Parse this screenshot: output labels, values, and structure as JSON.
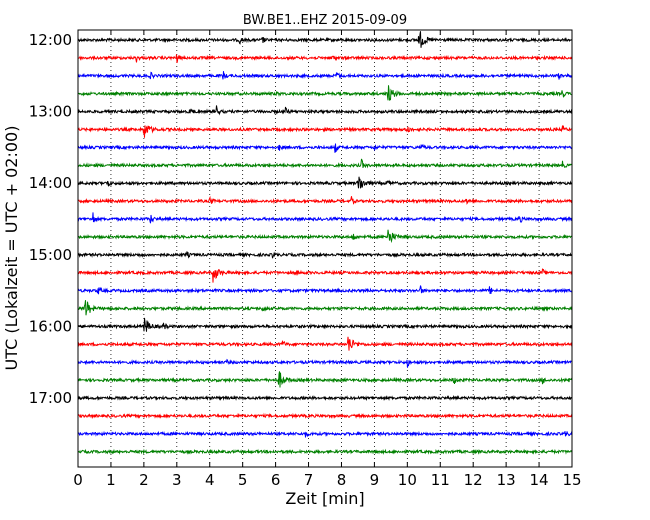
{
  "chart_data": {
    "type": "line",
    "title": "BW.BE1..EHZ 2015-09-09",
    "xlabel": "Zeit  [min]",
    "ylabel": "UTC (Lokalzeit = UTC + 02:00)",
    "xlim": [
      0,
      15
    ],
    "x_ticks": [
      "0",
      "1",
      "2",
      "3",
      "4",
      "5",
      "6",
      "7",
      "8",
      "9",
      "10",
      "11",
      "12",
      "13",
      "14",
      "15"
    ],
    "y_ticks": [
      "12:00",
      "13:00",
      "14:00",
      "15:00",
      "16:00",
      "17:00"
    ],
    "grid": "vertical dotted at each minute",
    "trace_colors": [
      "#000000",
      "#ff0000",
      "#0000ff",
      "#008000"
    ],
    "traces": [
      {
        "start": "12:00",
        "events": [
          {
            "t": 4.9,
            "a": 0.3
          },
          {
            "t": 5.6,
            "a": 0.35
          },
          {
            "t": 10.35,
            "a": 1.0
          }
        ]
      },
      {
        "start": "12:15",
        "events": [
          {
            "t": 1.75,
            "a": 0.5
          },
          {
            "t": 3.0,
            "a": 0.45
          },
          {
            "t": 7.7,
            "a": 0.3
          }
        ]
      },
      {
        "start": "12:30",
        "events": [
          {
            "t": 2.2,
            "a": 0.3
          },
          {
            "t": 4.4,
            "a": 0.45
          },
          {
            "t": 7.85,
            "a": 0.45
          },
          {
            "t": 14.6,
            "a": 0.25
          }
        ]
      },
      {
        "start": "12:45",
        "events": [
          {
            "t": 9.4,
            "a": 0.9
          },
          {
            "t": 14.7,
            "a": 0.45
          },
          {
            "t": 6.0,
            "a": 0.2
          }
        ]
      },
      {
        "start": "13:00",
        "events": [
          {
            "t": 3.4,
            "a": 0.45
          },
          {
            "t": 4.2,
            "a": 0.55
          },
          {
            "t": 6.3,
            "a": 0.3
          }
        ]
      },
      {
        "start": "13:15",
        "events": [
          {
            "t": 2.0,
            "a": 0.8
          },
          {
            "t": 10.0,
            "a": 0.5
          },
          {
            "t": 14.7,
            "a": 0.3
          }
        ]
      },
      {
        "start": "13:30",
        "events": [
          {
            "t": 6.1,
            "a": 0.3
          },
          {
            "t": 7.8,
            "a": 0.55
          },
          {
            "t": 10.4,
            "a": 0.4
          },
          {
            "t": 9.0,
            "a": 0.25
          }
        ]
      },
      {
        "start": "13:45",
        "events": [
          {
            "t": 8.6,
            "a": 0.55
          },
          {
            "t": 14.7,
            "a": 0.35
          }
        ]
      },
      {
        "start": "14:00",
        "events": [
          {
            "t": 0.9,
            "a": 0.45
          },
          {
            "t": 8.5,
            "a": 1.0
          },
          {
            "t": 9.4,
            "a": 0.35
          }
        ]
      },
      {
        "start": "14:15",
        "events": [
          {
            "t": 4.0,
            "a": 0.4
          },
          {
            "t": 8.3,
            "a": 0.35
          },
          {
            "t": 11.8,
            "a": 0.25
          }
        ]
      },
      {
        "start": "14:30",
        "events": [
          {
            "t": 0.45,
            "a": 0.65
          },
          {
            "t": 2.2,
            "a": 0.45
          },
          {
            "t": 13.4,
            "a": 0.45
          }
        ]
      },
      {
        "start": "14:45",
        "events": [
          {
            "t": 8.35,
            "a": 0.35
          },
          {
            "t": 9.4,
            "a": 0.9
          }
        ]
      },
      {
        "start": "15:00",
        "events": [
          {
            "t": 1.9,
            "a": 0.25
          },
          {
            "t": 3.3,
            "a": 0.25
          },
          {
            "t": 5.9,
            "a": 0.25
          }
        ]
      },
      {
        "start": "15:15",
        "events": [
          {
            "t": 4.1,
            "a": 0.85
          },
          {
            "t": 6.6,
            "a": 0.3
          },
          {
            "t": 14.1,
            "a": 0.3
          }
        ]
      },
      {
        "start": "15:30",
        "events": [
          {
            "t": 0.6,
            "a": 0.45
          },
          {
            "t": 10.4,
            "a": 0.4
          },
          {
            "t": 12.5,
            "a": 0.4
          }
        ]
      },
      {
        "start": "15:45",
        "events": [
          {
            "t": 0.2,
            "a": 1.0
          },
          {
            "t": 5.6,
            "a": 0.25
          }
        ]
      },
      {
        "start": "16:00",
        "events": [
          {
            "t": 2.0,
            "a": 0.9
          },
          {
            "t": 2.6,
            "a": 0.35
          }
        ]
      },
      {
        "start": "16:15",
        "events": [
          {
            "t": 6.2,
            "a": 0.5
          },
          {
            "t": 8.2,
            "a": 0.85
          }
        ]
      },
      {
        "start": "16:30",
        "events": [
          {
            "t": 10.0,
            "a": 0.45
          },
          {
            "t": 4.5,
            "a": 0.2
          }
        ]
      },
      {
        "start": "16:45",
        "events": [
          {
            "t": 6.1,
            "a": 0.8
          },
          {
            "t": 11.4,
            "a": 0.45
          },
          {
            "t": 14.1,
            "a": 0.4
          },
          {
            "t": 14.9,
            "a": 0.4
          }
        ]
      },
      {
        "start": "17:00",
        "events": []
      },
      {
        "start": "17:15",
        "events": []
      },
      {
        "start": "17:30",
        "events": [
          {
            "t": 6.9,
            "a": 0.3
          },
          {
            "t": 14.8,
            "a": 0.35
          }
        ]
      },
      {
        "start": "17:45",
        "events": []
      }
    ]
  }
}
